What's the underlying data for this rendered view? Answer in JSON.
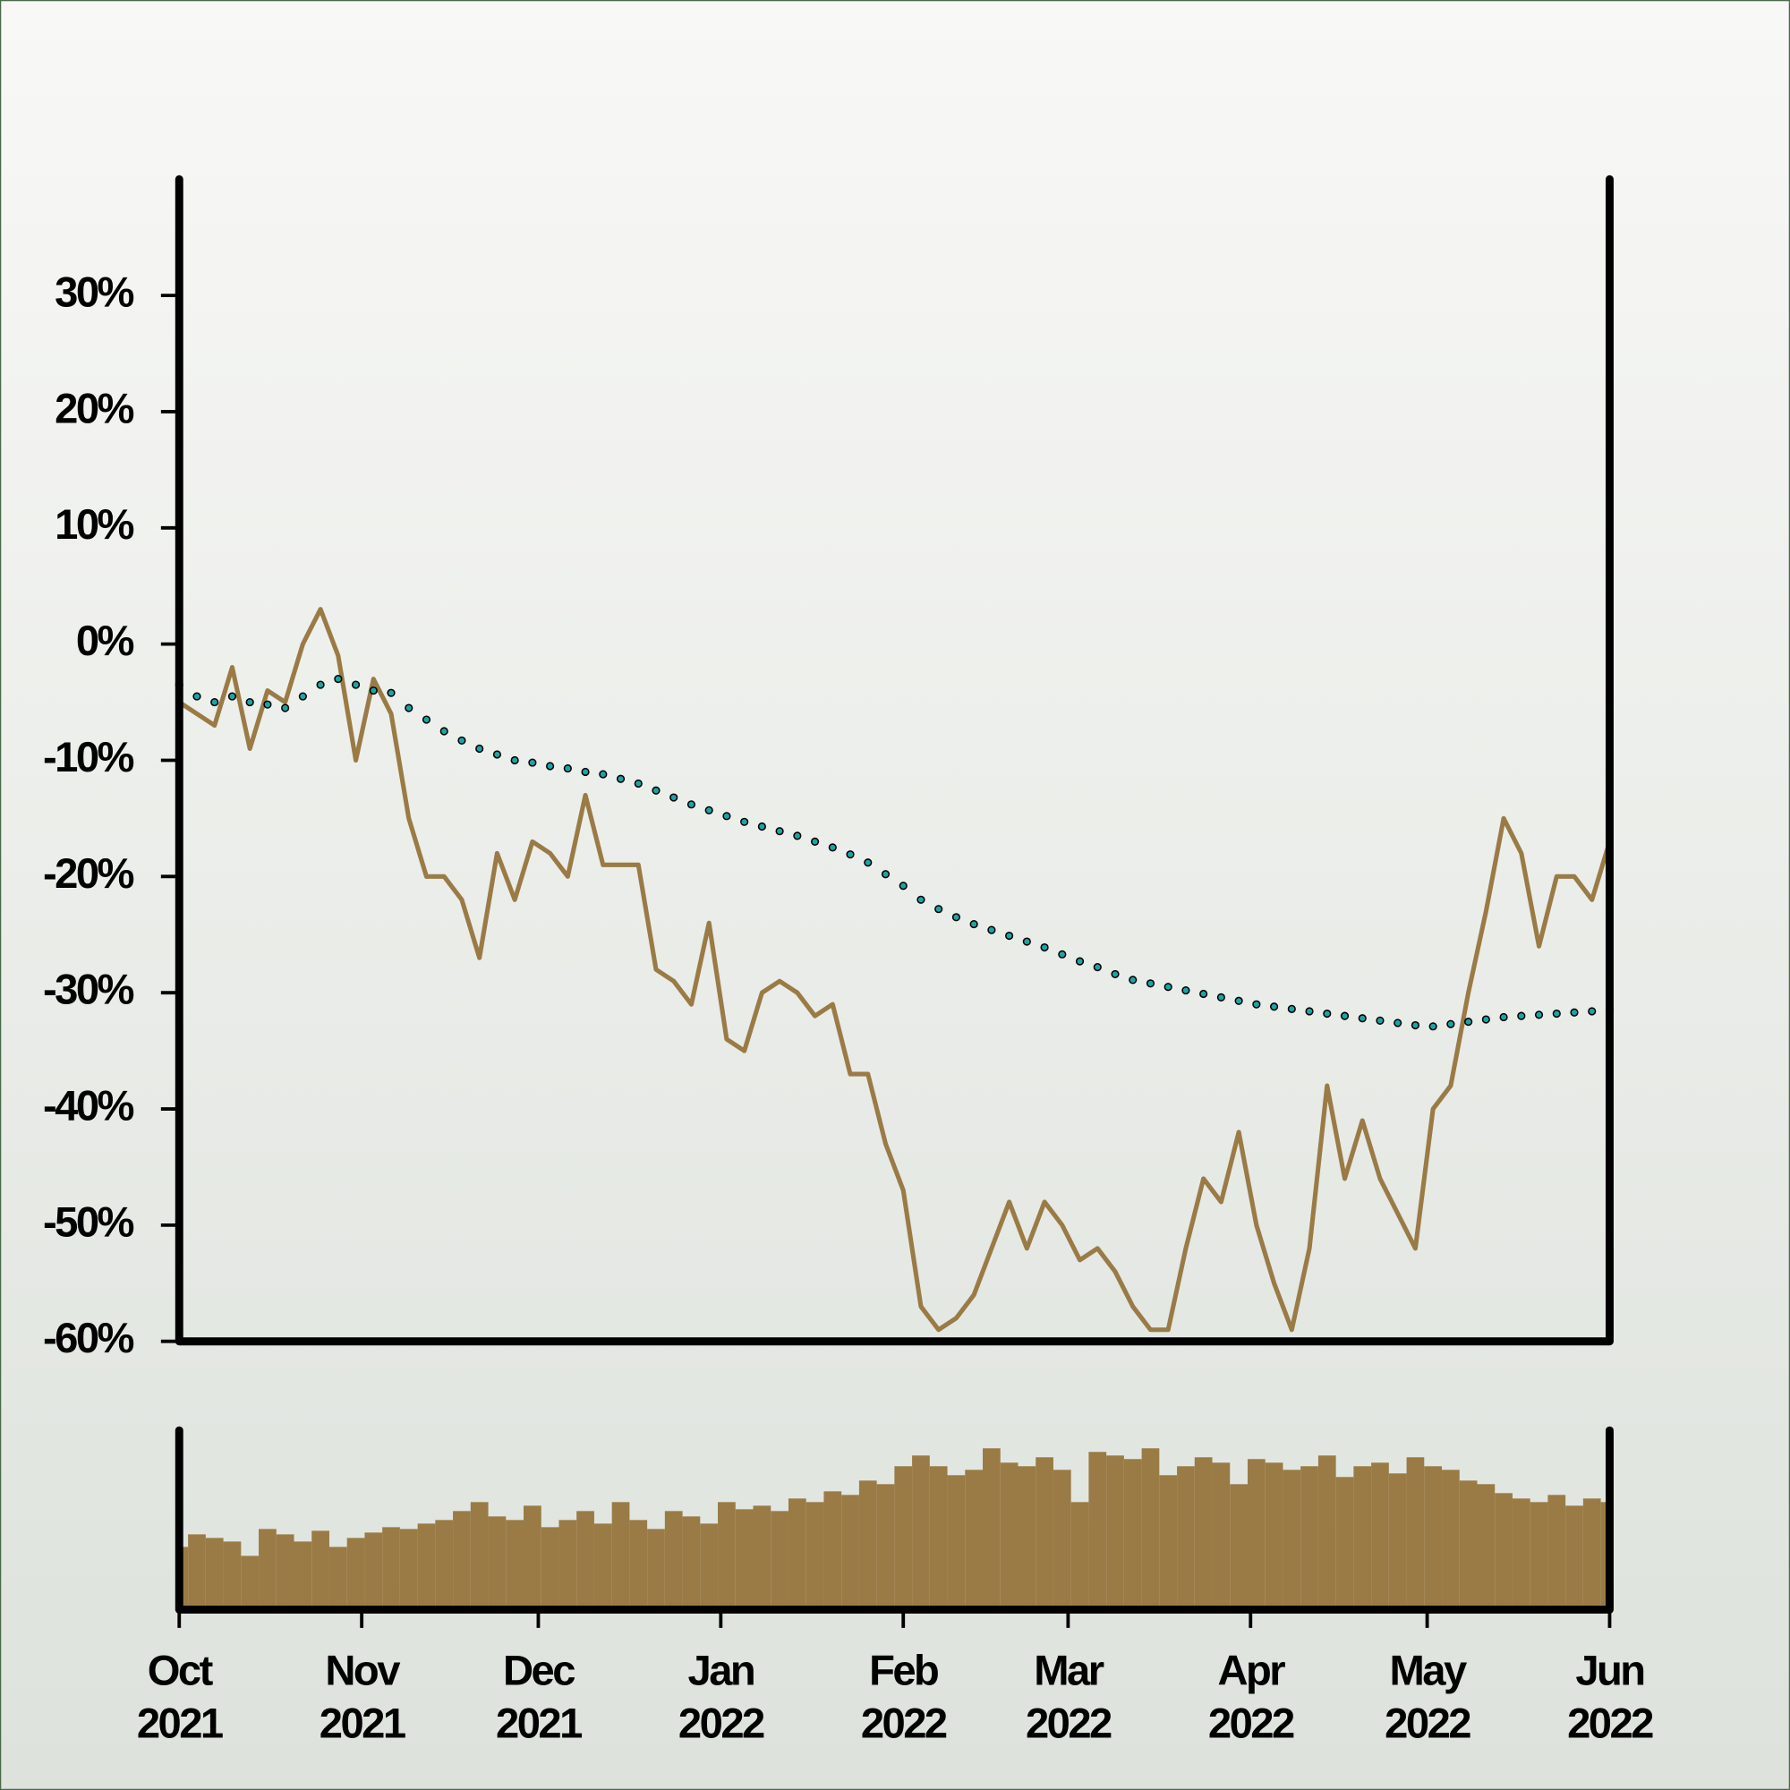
{
  "chart_data": [
    {
      "type": "line",
      "x": [
        "2021-10-01",
        "2021-10-04",
        "2021-10-07",
        "2021-10-10",
        "2021-10-13",
        "2021-10-16",
        "2021-10-19",
        "2021-10-22",
        "2021-10-25",
        "2021-10-28",
        "2021-10-31",
        "2021-11-03",
        "2021-11-06",
        "2021-11-09",
        "2021-11-12",
        "2021-11-15",
        "2021-11-18",
        "2021-11-21",
        "2021-11-24",
        "2021-11-27",
        "2021-11-30",
        "2021-12-03",
        "2021-12-06",
        "2021-12-09",
        "2021-12-12",
        "2021-12-15",
        "2021-12-18",
        "2021-12-21",
        "2021-12-24",
        "2021-12-27",
        "2021-12-30",
        "2022-01-02",
        "2022-01-05",
        "2022-01-08",
        "2022-01-11",
        "2022-01-14",
        "2022-01-17",
        "2022-01-20",
        "2022-01-23",
        "2022-01-26",
        "2022-01-29",
        "2022-02-01",
        "2022-02-04",
        "2022-02-07",
        "2022-02-10",
        "2022-02-13",
        "2022-02-16",
        "2022-02-19",
        "2022-02-22",
        "2022-02-25",
        "2022-02-28",
        "2022-03-03",
        "2022-03-06",
        "2022-03-09",
        "2022-03-12",
        "2022-03-15",
        "2022-03-18",
        "2022-03-21",
        "2022-03-24",
        "2022-03-27",
        "2022-03-30",
        "2022-04-02",
        "2022-04-05",
        "2022-04-08",
        "2022-04-11",
        "2022-04-14",
        "2022-04-17",
        "2022-04-20",
        "2022-04-23",
        "2022-04-26",
        "2022-04-29",
        "2022-05-02",
        "2022-05-05",
        "2022-05-08",
        "2022-05-11",
        "2022-05-14",
        "2022-05-17",
        "2022-05-20",
        "2022-05-23",
        "2022-05-26",
        "2022-05-29",
        "2022-06-01"
      ],
      "series": [
        {
          "color": "#9a7b45",
          "values": [
            -5,
            -6,
            -7,
            -2,
            -9,
            -4,
            -5,
            0,
            3,
            -1,
            -10,
            -3,
            -6,
            -15,
            -20,
            -20,
            -22,
            -27,
            -18,
            -22,
            -17,
            -18,
            -20,
            -13,
            -19,
            -19,
            -19,
            -28,
            -29,
            -31,
            -24,
            -34,
            -35,
            -30,
            -29,
            -30,
            -32,
            -31,
            -37,
            -37,
            -43,
            -47,
            -57,
            -59,
            -58,
            -56,
            -52,
            -48,
            -52,
            -48,
            -50,
            -53,
            -52,
            -54,
            -57,
            -59,
            -59,
            -52,
            -46,
            -48,
            -42,
            -50,
            -55,
            -59,
            -52,
            -38,
            -46,
            -41,
            -46,
            -49,
            -52,
            -40,
            -38,
            -30,
            -23,
            -15,
            -18,
            -26,
            -20,
            -20,
            -22,
            -17
          ]
        },
        {
          "color": "#1aa5a5",
          "values": [
            -3.5,
            -4.5,
            -5,
            -4.5,
            -5,
            -5.2,
            -5.5,
            -4.5,
            -3.5,
            -3,
            -3.5,
            -4,
            -4.2,
            -5.5,
            -6.5,
            -7.5,
            -8.3,
            -9,
            -9.5,
            -10,
            -10.2,
            -10.5,
            -10.7,
            -11,
            -11.2,
            -11.6,
            -12,
            -12.6,
            -13.2,
            -13.8,
            -14.3,
            -14.8,
            -15.3,
            -15.7,
            -16.1,
            -16.5,
            -17,
            -17.5,
            -18.1,
            -18.8,
            -19.8,
            -20.8,
            -22,
            -22.8,
            -23.5,
            -24.1,
            -24.6,
            -25.1,
            -25.6,
            -26.1,
            -26.7,
            -27.3,
            -27.8,
            -28.4,
            -28.9,
            -29.2,
            -29.5,
            -29.8,
            -30.1,
            -30.4,
            -30.7,
            -31,
            -31.2,
            -31.4,
            -31.6,
            -31.8,
            -32,
            -32.2,
            -32.4,
            -32.6,
            -32.8,
            -32.9,
            -32.7,
            -32.5,
            -32.3,
            -32.1,
            -32,
            -31.9,
            -31.8,
            -31.7,
            -31.6,
            -31.5
          ]
        }
      ],
      "xlim": [
        "2021-10-01",
        "2022-06-01"
      ],
      "ylim": [
        -60,
        40
      ],
      "yticks": [
        {
          "value": -60,
          "label": "-60%"
        },
        {
          "value": -50,
          "label": "-50%"
        },
        {
          "value": -40,
          "label": "-40%"
        },
        {
          "value": -30,
          "label": "-30%"
        },
        {
          "value": -20,
          "label": "-20%"
        },
        {
          "value": -10,
          "label": "-10%"
        },
        {
          "value": 0,
          "label": "0%"
        },
        {
          "value": 10,
          "label": "10%"
        },
        {
          "value": 20,
          "label": "20%"
        },
        {
          "value": 30,
          "label": "30%"
        }
      ]
    },
    {
      "type": "bar",
      "x": [
        "2021-10-01",
        "2021-10-04",
        "2021-10-07",
        "2021-10-10",
        "2021-10-13",
        "2021-10-16",
        "2021-10-19",
        "2021-10-22",
        "2021-10-25",
        "2021-10-28",
        "2021-10-31",
        "2021-11-03",
        "2021-11-06",
        "2021-11-09",
        "2021-11-12",
        "2021-11-15",
        "2021-11-18",
        "2021-11-21",
        "2021-11-24",
        "2021-11-27",
        "2021-11-30",
        "2021-12-03",
        "2021-12-06",
        "2021-12-09",
        "2021-12-12",
        "2021-12-15",
        "2021-12-18",
        "2021-12-21",
        "2021-12-24",
        "2021-12-27",
        "2021-12-30",
        "2022-01-02",
        "2022-01-05",
        "2022-01-08",
        "2022-01-11",
        "2022-01-14",
        "2022-01-17",
        "2022-01-20",
        "2022-01-23",
        "2022-01-26",
        "2022-01-29",
        "2022-02-01",
        "2022-02-04",
        "2022-02-07",
        "2022-02-10",
        "2022-02-13",
        "2022-02-16",
        "2022-02-19",
        "2022-02-22",
        "2022-02-25",
        "2022-02-28",
        "2022-03-03",
        "2022-03-06",
        "2022-03-09",
        "2022-03-12",
        "2022-03-15",
        "2022-03-18",
        "2022-03-21",
        "2022-03-24",
        "2022-03-27",
        "2022-03-30",
        "2022-04-02",
        "2022-04-05",
        "2022-04-08",
        "2022-04-11",
        "2022-04-14",
        "2022-04-17",
        "2022-04-20",
        "2022-04-23",
        "2022-04-26",
        "2022-04-29",
        "2022-05-02",
        "2022-05-05",
        "2022-05-08",
        "2022-05-11",
        "2022-05-14",
        "2022-05-17",
        "2022-05-20",
        "2022-05-23",
        "2022-05-26",
        "2022-05-29",
        "2022-06-01"
      ],
      "values": [
        35,
        42,
        40,
        38,
        30,
        45,
        42,
        38,
        44,
        35,
        40,
        43,
        46,
        45,
        48,
        50,
        55,
        60,
        52,
        50,
        58,
        46,
        50,
        55,
        48,
        60,
        50,
        45,
        55,
        52,
        48,
        60,
        56,
        58,
        55,
        62,
        60,
        66,
        64,
        72,
        70,
        80,
        86,
        80,
        75,
        78,
        90,
        82,
        80,
        85,
        78,
        60,
        88,
        86,
        84,
        90,
        75,
        80,
        85,
        82,
        70,
        84,
        82,
        78,
        80,
        86,
        74,
        80,
        82,
        76,
        85,
        80,
        78,
        72,
        70,
        65,
        62,
        60,
        64,
        58,
        62,
        60
      ],
      "color": "#9a7b45",
      "xlim": [
        "2021-10-01",
        "2022-06-01"
      ],
      "ylim": [
        0,
        100
      ],
      "xticks": [
        {
          "value": "2021-10-01",
          "label": "Oct\n2021"
        },
        {
          "value": "2021-11-01",
          "label": "Nov\n2021"
        },
        {
          "value": "2021-12-01",
          "label": "Dec\n2021"
        },
        {
          "value": "2022-01-01",
          "label": "Jan\n2022"
        },
        {
          "value": "2022-02-01",
          "label": "Feb\n2022"
        },
        {
          "value": "2022-03-01",
          "label": "Mar\n2022"
        },
        {
          "value": "2022-04-01",
          "label": "Apr\n2022"
        },
        {
          "value": "2022-05-01",
          "label": "May\n2022"
        },
        {
          "value": "2022-06-01",
          "label": "Jun\n2022"
        }
      ]
    }
  ]
}
